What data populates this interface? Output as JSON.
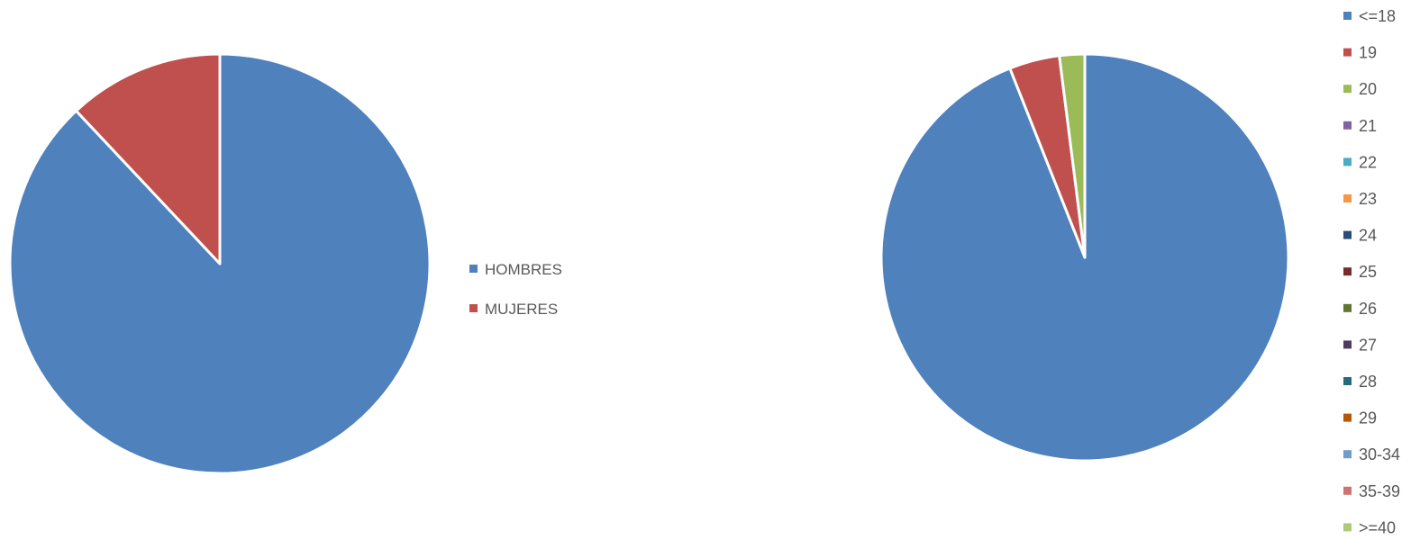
{
  "chart_data": [
    {
      "type": "pie",
      "categories": [
        "HOMBRES",
        "MUJERES"
      ],
      "values": [
        88,
        12
      ],
      "colors": [
        "#4F81BD",
        "#C0504D"
      ],
      "legend_position": "right",
      "start": "top",
      "direction": "clockwise"
    },
    {
      "type": "pie",
      "categories": [
        "<=18",
        "19",
        "20",
        "21",
        "22",
        "23",
        "24",
        "25",
        "26",
        "27",
        "28",
        "29",
        "30-34",
        "35-39",
        ">=40"
      ],
      "values": [
        94,
        4,
        2,
        0,
        0,
        0,
        0,
        0,
        0,
        0,
        0,
        0,
        0,
        0,
        0
      ],
      "colors": [
        "#4F81BD",
        "#C0504D",
        "#9BBB59",
        "#8064A2",
        "#4BACC6",
        "#F79646",
        "#2C4D75",
        "#772C2A",
        "#5F7530",
        "#4D3B62",
        "#276A7C",
        "#B65708",
        "#729ACA",
        "#CD7371",
        "#AFC97A"
      ],
      "legend_position": "right",
      "start": "top",
      "direction": "clockwise"
    }
  ]
}
